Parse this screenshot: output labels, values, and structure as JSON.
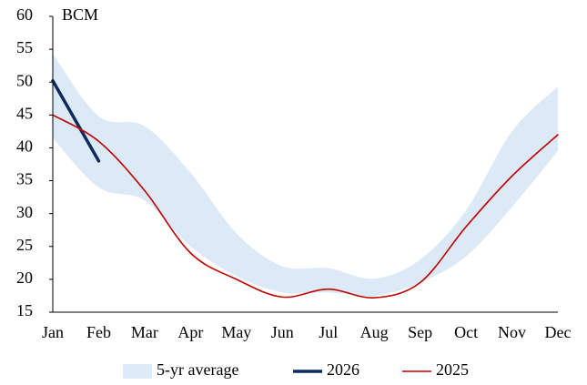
{
  "chart_data": {
    "type": "line",
    "y_label": "BCM",
    "categories": [
      "Jan",
      "Feb",
      "Mar",
      "Apr",
      "May",
      "Jun",
      "Jul",
      "Aug",
      "Sep",
      "Oct",
      "Nov",
      "Dec"
    ],
    "series": [
      {
        "name": "5-yr average",
        "type": "band",
        "color": "#dce9f7",
        "upper": [
          54.3,
          44.8,
          43.3,
          36.2,
          27,
          22,
          21.7,
          20.1,
          23,
          30.5,
          42.5,
          49.3
        ],
        "lower": [
          41.5,
          34,
          32,
          25,
          20.5,
          18,
          18,
          17.5,
          19.5,
          23.5,
          31,
          39.5
        ]
      },
      {
        "name": "2026",
        "color": "#0d2b5e",
        "width": 3.5,
        "values": [
          50.2,
          38,
          null,
          null,
          null,
          null,
          null,
          null,
          null,
          null,
          null,
          null
        ]
      },
      {
        "name": "2025",
        "color": "#c00000",
        "width": 1.6,
        "values": [
          45,
          41,
          33.5,
          24,
          20,
          17.3,
          18.5,
          17.2,
          19.5,
          28,
          35.7,
          42
        ]
      }
    ],
    "ylim": [
      15,
      60
    ],
    "yticks": [
      15,
      20,
      25,
      30,
      35,
      40,
      45,
      50,
      55,
      60
    ],
    "grid": false,
    "legend": "bottom"
  }
}
